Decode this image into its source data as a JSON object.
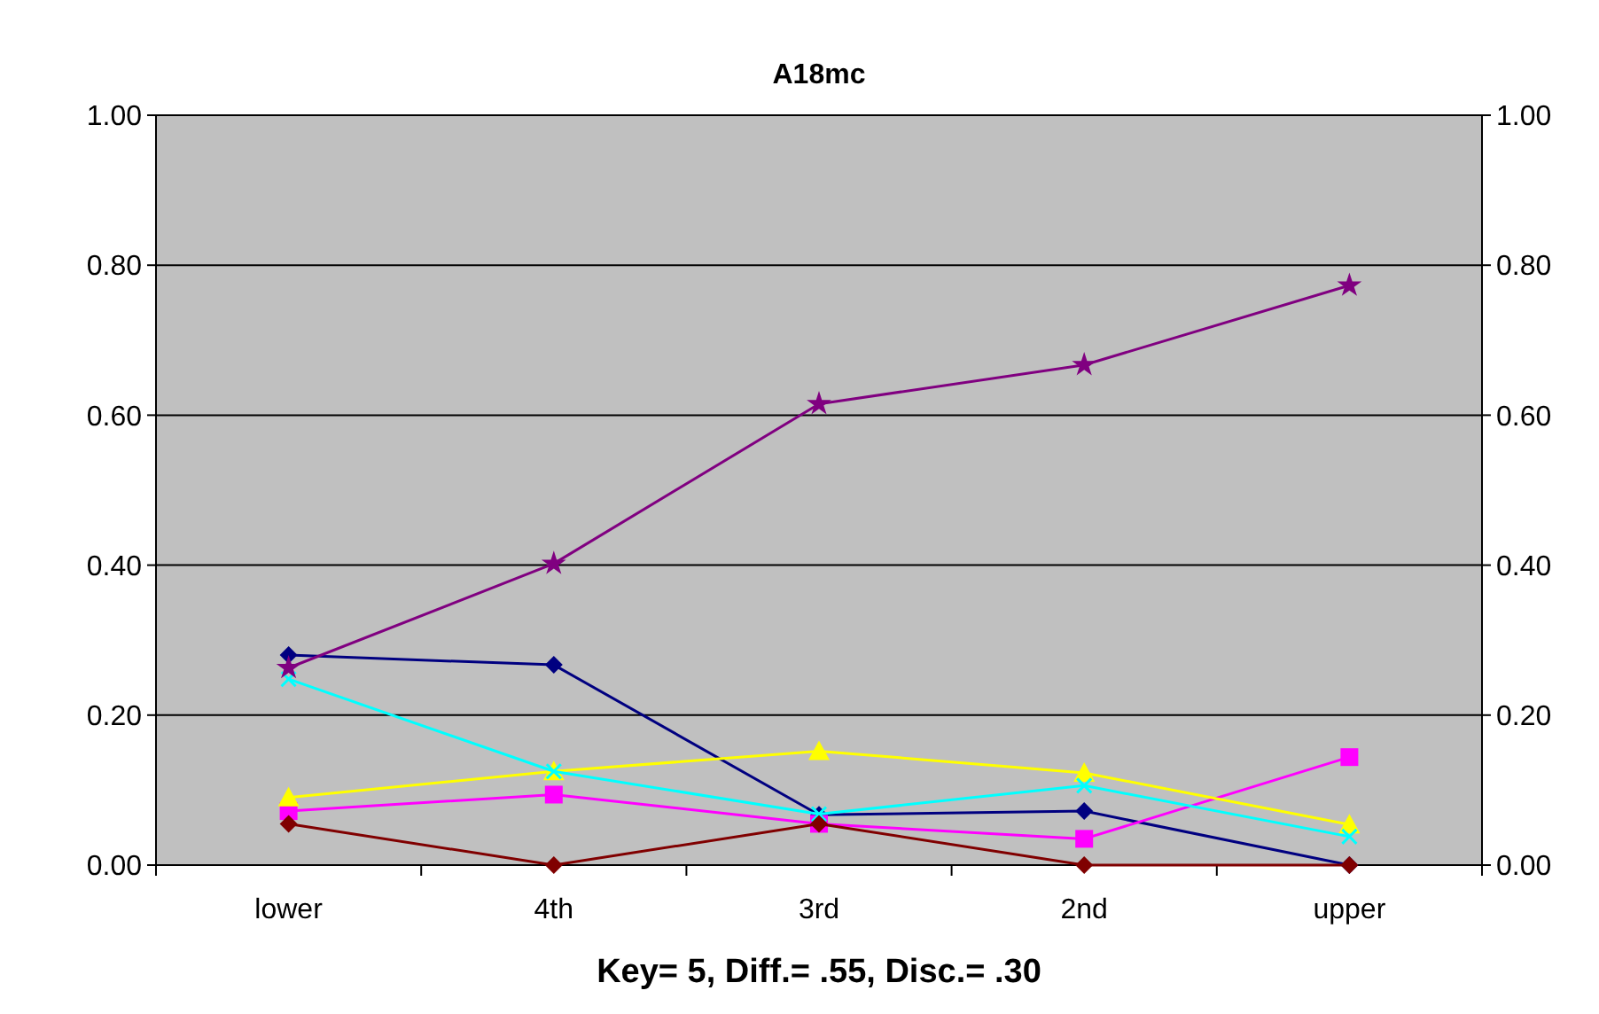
{
  "chart_data": {
    "type": "line",
    "title": "A18mc",
    "categories": [
      "lower",
      "4th",
      "3rd",
      "2nd",
      "upper"
    ],
    "series": [
      {
        "color": "#000080",
        "marker": "diamond",
        "values": [
          0.28,
          0.267,
          0.067,
          0.072,
          0
        ]
      },
      {
        "color": "#ff00ff",
        "marker": "square",
        "values": [
          0.072,
          0.094,
          0.055,
          0.035,
          0.144
        ]
      },
      {
        "color": "#ffff00",
        "marker": "triangle",
        "values": [
          0.09,
          0.125,
          0.152,
          0.123,
          0.054
        ]
      },
      {
        "color": "#00ffff",
        "marker": "cross",
        "values": [
          0.248,
          0.125,
          0.068,
          0.106,
          0.038
        ]
      },
      {
        "color": "#800080",
        "marker": "star",
        "values": [
          0.263,
          0.402,
          0.615,
          0.667,
          0.773
        ]
      },
      {
        "color": "#800000",
        "marker": "diamond",
        "values": [
          0.055,
          0,
          0.055,
          0,
          0
        ]
      }
    ],
    "ylim": [
      0,
      1
    ],
    "yticks": [
      {
        "value": 0,
        "label": "0.00"
      },
      {
        "value": 0.2,
        "label": "0.20"
      },
      {
        "value": 0.4,
        "label": "0.40"
      },
      {
        "value": 0.6,
        "label": "0.60"
      },
      {
        "value": 0.8,
        "label": "0.80"
      },
      {
        "value": 1,
        "label": "1.00"
      }
    ],
    "y2lim": [
      0,
      1
    ],
    "y2ticks": [
      {
        "value": 0,
        "label": "0.00"
      },
      {
        "value": 0.2,
        "label": "0.20"
      },
      {
        "value": 0.4,
        "label": "0.40"
      },
      {
        "value": 0.6,
        "label": "0.60"
      },
      {
        "value": 0.8,
        "label": "0.80"
      },
      {
        "value": 1,
        "label": "1.00"
      }
    ],
    "grid": "y",
    "line_style": "solid",
    "annotations": [
      "Key= 5,  Diff.= .55,  Disc.= .30"
    ]
  }
}
